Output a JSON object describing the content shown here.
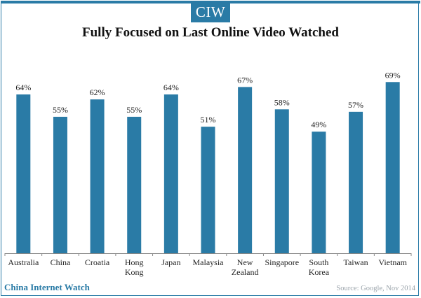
{
  "header": {
    "logo_text": "CIW",
    "title": "Fully Focused on Last Online Video Watched"
  },
  "footer": {
    "brand": "China Internet Watch",
    "source": "Source: Google, Nov 2014"
  },
  "colors": {
    "bar": "#2a7ba6",
    "accent": "#2a7ba6",
    "axis": "#888888"
  },
  "chart_data": {
    "type": "bar",
    "title": "Fully Focused on Last Online Video Watched",
    "xlabel": "",
    "ylabel": "",
    "ylim": [
      0,
      75
    ],
    "grid": false,
    "legend": "none",
    "categories": [
      [
        "Australia"
      ],
      [
        "China"
      ],
      [
        "Croatia"
      ],
      [
        "Hong",
        "Kong"
      ],
      [
        "Japan"
      ],
      [
        "Malaysia"
      ],
      [
        "New",
        "Zealand"
      ],
      [
        "Singapore"
      ],
      [
        "South",
        "Korea"
      ],
      [
        "Taiwan"
      ],
      [
        "Vietnam"
      ]
    ],
    "values": [
      64,
      55,
      62,
      55,
      64,
      51,
      67,
      58,
      49,
      57,
      69
    ],
    "data_labels": [
      "64%",
      "55%",
      "62%",
      "55%",
      "64%",
      "51%",
      "67%",
      "58%",
      "49%",
      "57%",
      "69%"
    ]
  }
}
